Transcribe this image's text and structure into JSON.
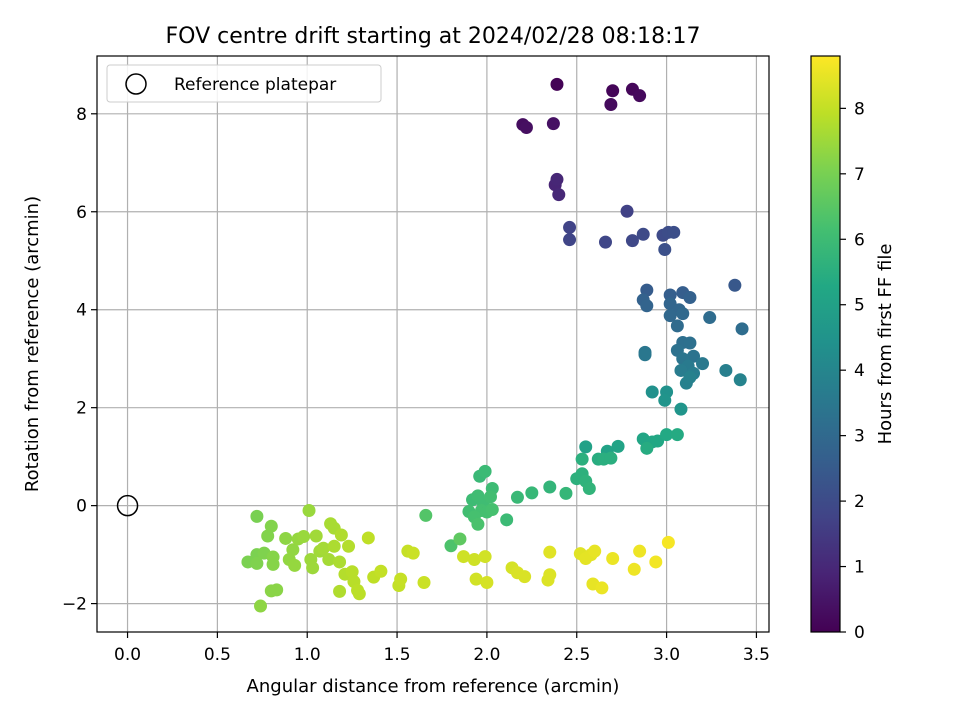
{
  "chart_data": {
    "type": "scatter",
    "title": "FOV centre drift starting at 2024/02/28 08:18:17",
    "xlabel": "Angular distance from reference (arcmin)",
    "ylabel": "Rotation from reference (arcmin)",
    "xlim": [
      -0.17,
      3.57
    ],
    "ylim": [
      -2.58,
      9.18
    ],
    "xticks": [
      0.0,
      0.5,
      1.0,
      1.5,
      2.0,
      2.5,
      3.0,
      3.5
    ],
    "xtick_labels": [
      "0.0",
      "0.5",
      "1.0",
      "1.5",
      "2.0",
      "2.5",
      "3.0",
      "3.5"
    ],
    "yticks": [
      -2,
      0,
      2,
      4,
      6,
      8
    ],
    "ytick_labels": [
      "−2",
      "0",
      "2",
      "4",
      "6",
      "8"
    ],
    "grid": true,
    "legend": {
      "placement": "top-left",
      "entries": [
        "Reference platepar"
      ]
    },
    "reference_point": {
      "x": 0.0,
      "y": 0.0
    },
    "colorbar": {
      "label": "Hours from first FF file",
      "range": [
        0,
        8.8
      ],
      "ticks": [
        0,
        1,
        2,
        3,
        4,
        5,
        6,
        7,
        8
      ],
      "tick_labels": [
        "0",
        "1",
        "2",
        "3",
        "4",
        "5",
        "6",
        "7",
        "8"
      ],
      "colormap": "viridis"
    },
    "points": [
      [
        2.39,
        8.6,
        0.05
      ],
      [
        2.7,
        8.47,
        0.1
      ],
      [
        2.81,
        8.5,
        0.15
      ],
      [
        2.85,
        8.37,
        0.2
      ],
      [
        2.69,
        8.19,
        0.25
      ],
      [
        2.2,
        7.78,
        0.3
      ],
      [
        2.22,
        7.72,
        0.35
      ],
      [
        2.37,
        7.8,
        0.4
      ],
      [
        2.38,
        6.55,
        0.9
      ],
      [
        2.39,
        6.66,
        0.95
      ],
      [
        2.4,
        6.35,
        1.0
      ],
      [
        2.78,
        6.01,
        1.7
      ],
      [
        2.46,
        5.68,
        1.75
      ],
      [
        2.46,
        5.43,
        1.8
      ],
      [
        2.66,
        5.38,
        1.85
      ],
      [
        2.81,
        5.41,
        1.9
      ],
      [
        2.87,
        5.54,
        1.95
      ],
      [
        2.98,
        5.52,
        2.0
      ],
      [
        3.01,
        5.58,
        2.05
      ],
      [
        3.04,
        5.58,
        2.1
      ],
      [
        2.99,
        5.23,
        2.15
      ],
      [
        3.38,
        4.5,
        2.4
      ],
      [
        2.89,
        4.4,
        2.55
      ],
      [
        3.09,
        4.35,
        2.6
      ],
      [
        3.02,
        4.3,
        2.65
      ],
      [
        3.13,
        4.25,
        2.7
      ],
      [
        2.87,
        4.2,
        2.75
      ],
      [
        2.89,
        4.08,
        2.8
      ],
      [
        3.02,
        4.12,
        2.85
      ],
      [
        3.07,
        4.0,
        2.9
      ],
      [
        3.02,
        3.88,
        2.95
      ],
      [
        3.09,
        3.92,
        3.0
      ],
      [
        3.06,
        3.67,
        3.05
      ],
      [
        3.24,
        3.84,
        3.1
      ],
      [
        3.42,
        3.61,
        3.15
      ],
      [
        3.09,
        3.33,
        3.2
      ],
      [
        3.13,
        3.32,
        3.25
      ],
      [
        3.06,
        3.17,
        3.3
      ],
      [
        3.15,
        3.05,
        3.35
      ],
      [
        3.09,
        3.0,
        3.4
      ],
      [
        2.88,
        3.13,
        3.45
      ],
      [
        2.88,
        3.08,
        3.5
      ],
      [
        3.2,
        2.9,
        3.55
      ],
      [
        3.12,
        2.85,
        3.6
      ],
      [
        3.08,
        2.76,
        3.65
      ],
      [
        3.15,
        2.7,
        3.7
      ],
      [
        3.33,
        2.76,
        3.75
      ],
      [
        3.11,
        2.5,
        3.8
      ],
      [
        3.13,
        2.62,
        3.85
      ],
      [
        3.41,
        2.57,
        3.9
      ],
      [
        2.92,
        2.32,
        4.4
      ],
      [
        3.0,
        2.32,
        4.45
      ],
      [
        2.99,
        2.15,
        4.5
      ],
      [
        3.08,
        1.97,
        4.55
      ],
      [
        2.55,
        1.2,
        5.0
      ],
      [
        2.67,
        1.11,
        5.05
      ],
      [
        2.73,
        1.21,
        5.1
      ],
      [
        2.87,
        1.36,
        5.15
      ],
      [
        2.92,
        1.3,
        5.2
      ],
      [
        2.95,
        1.32,
        5.25
      ],
      [
        3.0,
        1.45,
        5.3
      ],
      [
        3.06,
        1.45,
        5.35
      ],
      [
        2.89,
        1.17,
        5.4
      ],
      [
        2.62,
        0.95,
        5.45
      ],
      [
        2.65,
        0.95,
        5.5
      ],
      [
        2.69,
        0.97,
        5.5
      ],
      [
        2.53,
        0.95,
        5.55
      ],
      [
        2.5,
        0.55,
        5.6
      ],
      [
        2.53,
        0.65,
        5.6
      ],
      [
        2.55,
        0.5,
        5.65
      ],
      [
        2.57,
        0.35,
        5.7
      ],
      [
        2.35,
        0.38,
        5.75
      ],
      [
        2.44,
        0.25,
        5.8
      ],
      [
        2.25,
        0.26,
        5.85
      ],
      [
        2.17,
        0.17,
        5.9
      ],
      [
        2.11,
        -0.29,
        5.95
      ],
      [
        1.96,
        0.6,
        5.9
      ],
      [
        1.99,
        0.7,
        5.95
      ],
      [
        2.03,
        0.35,
        6.0
      ],
      [
        1.92,
        0.12,
        6.0
      ],
      [
        1.95,
        0.2,
        6.05
      ],
      [
        1.98,
        0.05,
        6.05
      ],
      [
        2.02,
        0.18,
        6.1
      ],
      [
        1.9,
        -0.12,
        6.1
      ],
      [
        1.97,
        -0.1,
        6.15
      ],
      [
        2.0,
        -0.13,
        6.15
      ],
      [
        2.03,
        -0.08,
        6.2
      ],
      [
        1.93,
        -0.23,
        6.2
      ],
      [
        1.95,
        -0.38,
        6.25
      ],
      [
        1.8,
        -0.82,
        6.3
      ],
      [
        1.66,
        -0.2,
        6.4
      ],
      [
        1.85,
        -0.68,
        6.6
      ],
      [
        0.72,
        -0.22,
        7.0
      ],
      [
        0.72,
        -1.0,
        7.05
      ],
      [
        0.67,
        -1.15,
        7.05
      ],
      [
        0.72,
        -1.18,
        7.1
      ],
      [
        0.76,
        -0.97,
        7.1
      ],
      [
        0.78,
        -0.62,
        7.15
      ],
      [
        0.8,
        -0.42,
        7.15
      ],
      [
        0.81,
        -1.05,
        7.2
      ],
      [
        0.81,
        -1.2,
        7.2
      ],
      [
        0.8,
        -1.74,
        7.25
      ],
      [
        0.83,
        -1.72,
        7.25
      ],
      [
        0.74,
        -2.05,
        7.3
      ],
      [
        0.88,
        -0.67,
        7.3
      ],
      [
        0.9,
        -1.1,
        7.35
      ],
      [
        0.92,
        -0.9,
        7.35
      ],
      [
        0.93,
        -1.22,
        7.4
      ],
      [
        0.95,
        -0.68,
        7.4
      ],
      [
        0.98,
        -0.63,
        7.45
      ],
      [
        1.01,
        -0.1,
        7.45
      ],
      [
        1.02,
        -1.1,
        7.5
      ],
      [
        1.03,
        -1.27,
        7.5
      ],
      [
        1.05,
        -0.62,
        7.55
      ],
      [
        1.07,
        -0.93,
        7.55
      ],
      [
        1.09,
        -0.87,
        7.6
      ],
      [
        1.12,
        -1.1,
        7.6
      ],
      [
        1.13,
        -0.37,
        7.65
      ],
      [
        1.15,
        -0.46,
        7.65
      ],
      [
        1.15,
        -0.83,
        7.7
      ],
      [
        1.18,
        -1.15,
        7.7
      ],
      [
        1.18,
        -1.75,
        7.75
      ],
      [
        1.19,
        -0.6,
        7.75
      ],
      [
        1.21,
        -1.4,
        7.8
      ],
      [
        1.23,
        -0.83,
        7.8
      ],
      [
        1.25,
        -1.35,
        7.85
      ],
      [
        1.26,
        -1.55,
        7.85
      ],
      [
        1.28,
        -1.73,
        7.9
      ],
      [
        1.29,
        -1.8,
        7.9
      ],
      [
        1.34,
        -0.66,
        7.95
      ],
      [
        1.37,
        -1.46,
        7.95
      ],
      [
        1.41,
        -1.34,
        8.0
      ],
      [
        1.51,
        -1.63,
        8.0
      ],
      [
        1.52,
        -1.5,
        8.05
      ],
      [
        1.56,
        -0.93,
        8.05
      ],
      [
        1.59,
        -0.97,
        8.1
      ],
      [
        1.65,
        -1.57,
        8.1
      ],
      [
        1.87,
        -1.04,
        8.15
      ],
      [
        1.93,
        -1.1,
        8.15
      ],
      [
        1.94,
        -1.5,
        8.2
      ],
      [
        1.99,
        -1.04,
        8.2
      ],
      [
        2.0,
        -1.57,
        8.25
      ],
      [
        2.14,
        -1.27,
        8.25
      ],
      [
        2.17,
        -1.37,
        8.3
      ],
      [
        2.21,
        -1.45,
        8.3
      ],
      [
        2.34,
        -1.52,
        8.35
      ],
      [
        2.35,
        -1.41,
        8.35
      ],
      [
        2.35,
        -0.95,
        8.4
      ],
      [
        2.52,
        -0.98,
        8.4
      ],
      [
        2.55,
        -1.08,
        8.45
      ],
      [
        2.58,
        -1.0,
        8.45
      ],
      [
        2.6,
        -0.93,
        8.5
      ],
      [
        2.59,
        -1.6,
        8.5
      ],
      [
        2.64,
        -1.68,
        8.55
      ],
      [
        2.7,
        -1.08,
        8.55
      ],
      [
        2.82,
        -1.3,
        8.6
      ],
      [
        2.85,
        -0.93,
        8.6
      ],
      [
        2.94,
        -1.15,
        8.65
      ],
      [
        3.01,
        -0.75,
        8.7
      ]
    ]
  }
}
